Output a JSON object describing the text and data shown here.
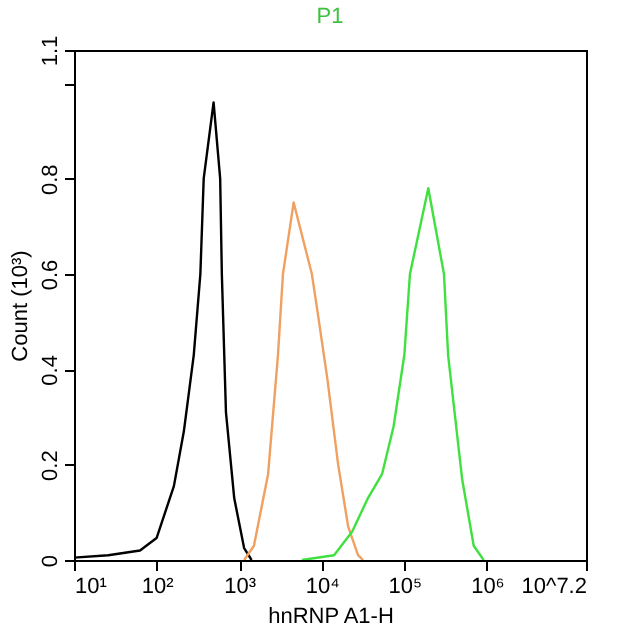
{
  "chart_data": {
    "type": "line",
    "title": "P1",
    "xlabel": "hnRNP A1-H",
    "ylabel": "Count (10³)",
    "log": "x",
    "grid": false,
    "marker": "none",
    "line_style": "solid",
    "xlim": [
      10,
      15848932
    ],
    "xticks": [
      {
        "value": 10,
        "label": "10¹"
      },
      {
        "value": 100,
        "label": "10²"
      },
      {
        "value": 1000,
        "label": "10³"
      },
      {
        "value": 10000,
        "label": "10⁴"
      },
      {
        "value": 100000,
        "label": "10⁵"
      },
      {
        "value": 1000000,
        "label": "10⁶"
      },
      {
        "value": 15848932,
        "label": "10^7.2"
      }
    ],
    "ylim": [
      0,
      1.07
    ],
    "yticks": [
      0,
      0.2,
      0.4,
      0.6,
      0.8,
      {
        "value": 1.0,
        "label": null
      },
      {
        "value": 1.07,
        "label": "1.1"
      }
    ],
    "series": [
      {
        "color": "#000000",
        "x": [
          10,
          26,
          63,
          100,
          162,
          214,
          282,
          339,
          372,
          490,
          589,
          617,
          692,
          871,
          1148,
          1413
        ],
        "values": [
          0.005,
          0.01,
          0.02,
          0.046,
          0.155,
          0.27,
          0.43,
          0.6,
          0.8,
          0.96,
          0.8,
          0.6,
          0.31,
          0.13,
          0.025,
          0
        ]
      },
      {
        "color": "#f0a060",
        "x": [
          1150,
          1510,
          2240,
          2950,
          3390,
          4570,
          7590,
          8910,
          11700,
          15800,
          20900,
          27500,
          31600
        ],
        "values": [
          0,
          0.03,
          0.18,
          0.43,
          0.6,
          0.75,
          0.6,
          0.52,
          0.38,
          0.2,
          0.07,
          0.01,
          0
        ]
      },
      {
        "color": "#40e040",
        "x": [
          5750,
          14100,
          23400,
          36300,
          53700,
          74100,
          100000,
          117000,
          195000,
          302000,
          339000,
          501000,
          692000,
          912000
        ],
        "values": [
          0,
          0.01,
          0.06,
          0.13,
          0.18,
          0.28,
          0.43,
          0.6,
          0.78,
          0.6,
          0.43,
          0.17,
          0.03,
          0
        ]
      }
    ]
  }
}
